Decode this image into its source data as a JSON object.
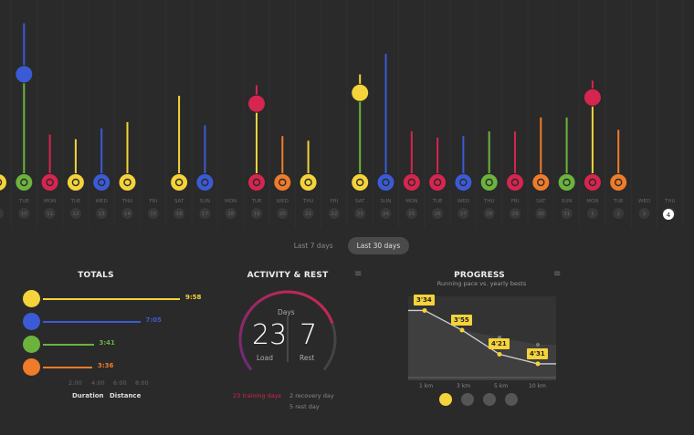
{
  "colors": {
    "run": "#f5d33a",
    "cycle": "#3b5bd6",
    "walk": "#6cb33e",
    "other": "#ef7c2b",
    "strength": "#d6254f",
    "inactive": "#555555",
    "selected_day": "#ffffff"
  },
  "timeline": {
    "days": [
      {
        "day": "",
        "date": "",
        "activity": "run",
        "stems": [
          {
            "sport": "run",
            "level": 0.1
          }
        ]
      },
      {
        "day": "TUE",
        "date": "10",
        "activity": "walk",
        "stems": [
          {
            "sport": "walk",
            "level": 0.58
          },
          {
            "sport": "cycle",
            "level": 0.27
          }
        ]
      },
      {
        "day": "MON",
        "date": "11",
        "activity": "strength",
        "stems": [
          {
            "sport": "strength",
            "level": 0.25
          }
        ]
      },
      {
        "day": "TUE",
        "date": "12",
        "activity": "run",
        "stems": [
          {
            "sport": "run",
            "level": 0.22
          }
        ]
      },
      {
        "day": "WED",
        "date": "13",
        "activity": "cycle",
        "stems": [
          {
            "sport": "cycle",
            "level": 0.29
          }
        ]
      },
      {
        "day": "THU",
        "date": "14",
        "activity": "run",
        "stems": [
          {
            "sport": "run",
            "level": 0.33
          }
        ]
      },
      {
        "day": "FRI",
        "date": "15",
        "activity": "",
        "stems": []
      },
      {
        "day": "SAT",
        "date": "16",
        "activity": "run",
        "stems": [
          {
            "sport": "run",
            "level": 0.5
          }
        ]
      },
      {
        "day": "SUN",
        "date": "17",
        "activity": "cycle",
        "stems": [
          {
            "sport": "cycle",
            "level": 0.31
          }
        ]
      },
      {
        "day": "MON",
        "date": "18",
        "activity": "",
        "stems": []
      },
      {
        "day": "TUE",
        "date": "19",
        "activity": "strength",
        "stems": [
          {
            "sport": "run",
            "level": 0.39
          },
          {
            "sport": "strength",
            "level": 0.06
          }
        ]
      },
      {
        "day": "WED",
        "date": "20",
        "activity": "other",
        "stems": [
          {
            "sport": "other",
            "level": 0.24
          }
        ]
      },
      {
        "day": "THU",
        "date": "21",
        "activity": "run",
        "stems": [
          {
            "sport": "run",
            "level": 0.21
          }
        ]
      },
      {
        "day": "FRI",
        "date": "22",
        "activity": "",
        "stems": []
      },
      {
        "day": "SAT",
        "date": "23",
        "activity": "run",
        "stems": [
          {
            "sport": "walk",
            "level": 0.46
          },
          {
            "sport": "run",
            "level": 0.06
          }
        ]
      },
      {
        "day": "SUN",
        "date": "24",
        "activity": "cycle",
        "stems": [
          {
            "sport": "cycle",
            "level": 0.77
          }
        ]
      },
      {
        "day": "MON",
        "date": "25",
        "activity": "strength",
        "stems": [
          {
            "sport": "strength",
            "level": 0.27
          }
        ]
      },
      {
        "day": "TUE",
        "date": "26",
        "activity": "strength",
        "stems": [
          {
            "sport": "strength",
            "level": 0.23
          }
        ]
      },
      {
        "day": "WED",
        "date": "27",
        "activity": "cycle",
        "stems": [
          {
            "sport": "cycle",
            "level": 0.24
          }
        ]
      },
      {
        "day": "THU",
        "date": "28",
        "activity": "walk",
        "stems": [
          {
            "sport": "walk",
            "level": 0.27
          }
        ]
      },
      {
        "day": "FRI",
        "date": "29",
        "activity": "strength",
        "stems": [
          {
            "sport": "strength",
            "level": 0.27
          }
        ]
      },
      {
        "day": "SAT",
        "date": "30",
        "activity": "other",
        "stems": [
          {
            "sport": "other",
            "level": 0.36
          }
        ]
      },
      {
        "day": "SUN",
        "date": "31",
        "activity": "walk",
        "stems": [
          {
            "sport": "walk",
            "level": 0.36
          }
        ]
      },
      {
        "day": "MON",
        "date": "1",
        "activity": "strength",
        "stems": [
          {
            "sport": "run",
            "level": 0.43
          },
          {
            "sport": "strength",
            "level": 0.05
          }
        ]
      },
      {
        "day": "TUE",
        "date": "2",
        "activity": "other",
        "stems": [
          {
            "sport": "other",
            "level": 0.28
          }
        ]
      },
      {
        "day": "WED",
        "date": "3",
        "activity": "",
        "stems": []
      },
      {
        "day": "THU",
        "date": "4",
        "activity": "",
        "stems": []
      }
    ]
  },
  "tabs": [
    {
      "label": "Last 7 days",
      "active": false
    },
    {
      "label": "Last 30 days",
      "active": true
    }
  ],
  "totals": {
    "title": "TOTALS",
    "rows": [
      {
        "sport": "run",
        "icon": "running-shoe-icon",
        "value": "9:58",
        "fraction": 1.0
      },
      {
        "sport": "cycle",
        "icon": "bike-icon",
        "value": "7:05",
        "fraction": 0.71
      },
      {
        "sport": "walk",
        "icon": "walk-icon",
        "value": "3:41",
        "fraction": 0.37
      },
      {
        "sport": "other",
        "icon": "other-sport-icon",
        "value": "3:36",
        "fraction": 0.36
      }
    ],
    "axis_ticks": [
      "2:00",
      "4:00",
      "6:00",
      "8:00"
    ],
    "legend": {
      "duration": "Duration",
      "distance": "Distance"
    }
  },
  "activity_rest": {
    "title": "ACTIVITY & REST",
    "caption": "Days",
    "load_value": "23",
    "load_label": "Load",
    "rest_value": "7",
    "rest_label": "Rest",
    "load_fraction": 0.77,
    "training_days": "23 training days",
    "recovery_days": "2 recovery day",
    "rest_days": "5 rest day"
  },
  "progress": {
    "title": "PROGRESS",
    "subtitle": "Running pace vs. yearly bests",
    "points": [
      {
        "km": "1 km",
        "pace": "3'34",
        "pace_min": 3.57,
        "best_min": 3.57
      },
      {
        "km": "3 km",
        "pace": "3'55",
        "pace_min": 3.92,
        "best_min": 3.92
      },
      {
        "km": "5 km",
        "pace": "4'21",
        "pace_min": 4.35,
        "best_min": 4.05
      },
      {
        "km": "10 km",
        "pace": "4'31",
        "pace_min": 4.52,
        "best_min": 4.18
      }
    ],
    "x_labels": [
      "1 km",
      "3 km",
      "5 km",
      "10 km"
    ]
  }
}
